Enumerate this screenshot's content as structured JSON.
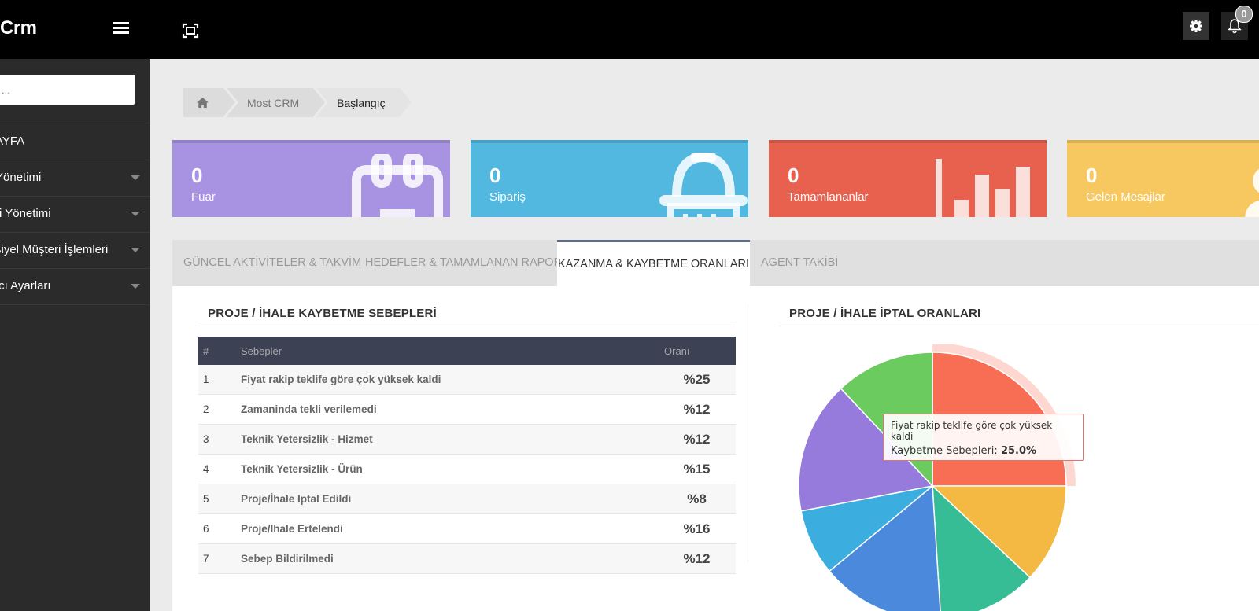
{
  "app": {
    "brand": "Crm"
  },
  "topbar": {
    "notification_count": "0"
  },
  "sidebar": {
    "search_placeholder": "...",
    "items": [
      {
        "label": "AYFA",
        "has_caret": false
      },
      {
        "label": "Yönetimi",
        "has_caret": true
      },
      {
        "label": "ri Yönetimi",
        "has_caret": true
      },
      {
        "label": "siyel Müşteri İşlemleri",
        "has_caret": true
      },
      {
        "label": "ıcı Ayarları",
        "has_caret": true
      }
    ]
  },
  "breadcrumb": {
    "home_icon": "home-icon",
    "items": [
      "Most CRM",
      "Başlangıç"
    ]
  },
  "stats": [
    {
      "value": "0",
      "label": "Fuar",
      "color": "#a893e2",
      "icon": "calendar-icon"
    },
    {
      "value": "0",
      "label": "Sipariş",
      "color": "#52b8e0",
      "icon": "basket-icon"
    },
    {
      "value": "0",
      "label": "Tamamlananlar",
      "color": "#e8614e",
      "icon": "bar-chart-icon"
    },
    {
      "value": "0",
      "label": "Gelen Mesajlar",
      "color": "#f6c85f",
      "icon": "user-icon"
    }
  ],
  "tabs": [
    {
      "label": "GÜNCEL AKTİVİTELER & TAKVİM",
      "active": false
    },
    {
      "label": "HEDEFLER & TAMAMLANAN RAPORU",
      "active": false
    },
    {
      "label": "KAZANMA & KAYBETME ORANLARI",
      "active": true
    },
    {
      "label": "AGENT TAKİBİ",
      "active": false
    }
  ],
  "left_section": {
    "title": "PROJE / İHALE KAYBETME SEBEPLERİ",
    "columns": [
      "#",
      "Sebepler",
      "Oranı"
    ],
    "rows": [
      {
        "idx": "1",
        "reason": "Fiyat rakip teklife göre çok yüksek kaldi",
        "rate": "%25"
      },
      {
        "idx": "2",
        "reason": "Zamaninda tekli verilemedi",
        "rate": "%12"
      },
      {
        "idx": "3",
        "reason": "Teknik Yetersizlik - Hizmet",
        "rate": "%12"
      },
      {
        "idx": "4",
        "reason": "Teknik Yetersizlik - Ürün",
        "rate": "%15"
      },
      {
        "idx": "5",
        "reason": "Proje/İhale Iptal Edildi",
        "rate": "%8"
      },
      {
        "idx": "6",
        "reason": "Proje/Ihale Ertelendi",
        "rate": "%16"
      },
      {
        "idx": "7",
        "reason": "Sebep Bildirilmedi",
        "rate": "%12"
      }
    ]
  },
  "right_section": {
    "title": "PROJE / İHALE İPTAL ORANLARI",
    "tooltip": {
      "title": "Fiyat rakip teklife göre çok yüksek kaldi",
      "series": "Kaybetme Sebepleri:",
      "value": "25.0%"
    }
  },
  "chart_data": {
    "type": "pie",
    "series_name": "Kaybetme Sebepleri",
    "slices": [
      {
        "label": "Fiyat rakip teklife göre çok yüksek kaldi",
        "value": 25,
        "color": "#f76e55"
      },
      {
        "label": "Zamaninda tekli verilemedi",
        "value": 12,
        "color": "#f4b942"
      },
      {
        "label": "Teknik Yetersizlik - Hizmet",
        "value": 12,
        "color": "#36bd96"
      },
      {
        "label": "Teknik Yetersizlik - Ürün",
        "value": 15,
        "color": "#4a89dc"
      },
      {
        "label": "Proje/İhale Iptal Edildi",
        "value": 8,
        "color": "#3badde"
      },
      {
        "label": "Proje/Ihale Ertelendi",
        "value": 16,
        "color": "#967adc"
      },
      {
        "label": "Sebep Bildirilmedi",
        "value": 12,
        "color": "#6ccb5f"
      }
    ],
    "highlighted": "Fiyat rakip teklife göre çok yüksek kaldi"
  }
}
